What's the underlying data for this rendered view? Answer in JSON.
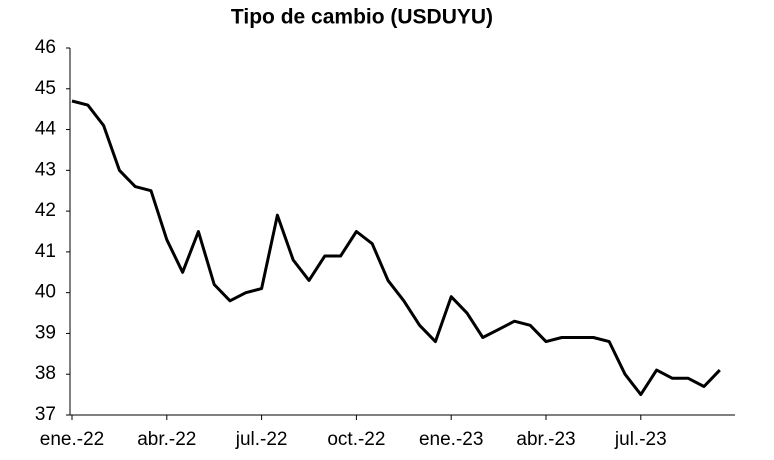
{
  "chart_data": {
    "type": "line",
    "title": "Tipo de cambio (USDUYU)",
    "categories": [
      "ene.-22",
      null,
      null,
      null,
      null,
      null,
      "abr.-22",
      null,
      null,
      null,
      null,
      null,
      "jul.-22",
      null,
      null,
      null,
      null,
      null,
      "oct.-22",
      null,
      null,
      null,
      null,
      null,
      "ene.-23",
      null,
      null,
      null,
      null,
      null,
      "abr.-23",
      null,
      null,
      null,
      null,
      null,
      "jul.-23",
      null,
      null,
      null,
      null,
      null
    ],
    "values": [
      44.7,
      44.6,
      44.1,
      43.0,
      42.6,
      42.5,
      41.3,
      40.5,
      41.5,
      40.2,
      39.8,
      40.0,
      40.1,
      41.9,
      40.8,
      40.3,
      40.9,
      40.9,
      41.5,
      41.2,
      40.3,
      39.8,
      39.2,
      38.8,
      39.9,
      39.5,
      38.9,
      39.1,
      39.3,
      39.2,
      38.8,
      38.9,
      38.9,
      38.9,
      38.8,
      38.0,
      37.5,
      38.1,
      37.9,
      37.9,
      37.7,
      38.1
    ],
    "color": "#000000",
    "ylim": [
      37,
      46
    ],
    "yticks": [
      37,
      38,
      39,
      40,
      41,
      42,
      43,
      44,
      45,
      46
    ],
    "grid": false
  }
}
